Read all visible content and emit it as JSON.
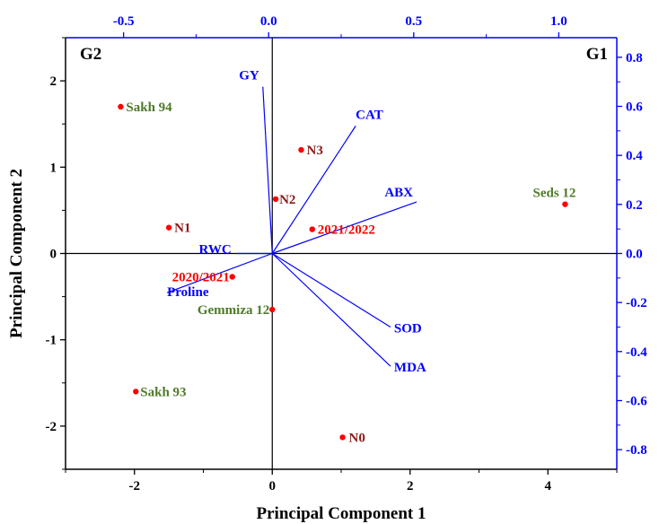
{
  "chart_data": {
    "type": "scatter",
    "subtype": "biplot",
    "xlabel": "Principal Component 1",
    "ylabel": "Principal Component 2",
    "xlim": [
      -3,
      5
    ],
    "ylim": [
      -2.5,
      2.5
    ],
    "x_ticks": [
      -2,
      0,
      2,
      4
    ],
    "y_ticks": [
      -2,
      -1,
      0,
      1,
      2
    ],
    "top_axis": {
      "lim": [
        -0.7,
        1.2
      ],
      "ticks": [
        -0.5,
        0.0,
        0.5,
        1.0
      ],
      "tick_labels": [
        "-0.5",
        "0.0",
        "0.5",
        "1.0"
      ],
      "color": "#0000ff"
    },
    "right_axis": {
      "lim": [
        -0.88,
        0.88
      ],
      "ticks": [
        -0.8,
        -0.6,
        -0.4,
        -0.2,
        0.0,
        0.2,
        0.4,
        0.6,
        0.8
      ],
      "tick_labels": [
        "-0.8",
        "-0.6",
        "-0.4",
        "-0.2",
        "0.0",
        "0.2",
        "0.4",
        "0.6",
        "0.8"
      ],
      "color": "#0000ff"
    },
    "quadrant_labels": [
      "G2",
      "G1"
    ],
    "point_color": "#ff0000",
    "vector_color": "#0000ff",
    "scores": [
      {
        "label": "Sakh 94",
        "x": -2.2,
        "y": 1.7,
        "color": "#4f7a28"
      },
      {
        "label": "N3",
        "x": 0.42,
        "y": 1.2,
        "color": "#8b1a1a"
      },
      {
        "label": "N2",
        "x": 0.05,
        "y": 0.63,
        "color": "#8b1a1a"
      },
      {
        "label": "Seds 12",
        "x": 4.25,
        "y": 0.57,
        "color": "#4f7a28"
      },
      {
        "label": "N1",
        "x": -1.5,
        "y": 0.3,
        "color": "#8b1a1a"
      },
      {
        "label": "2021/2022",
        "x": 0.58,
        "y": 0.28,
        "color": "#ff0000"
      },
      {
        "label": "2020/2021",
        "x": -0.58,
        "y": -0.27,
        "color": "#ff0000"
      },
      {
        "label": "Gemmiza 12",
        "x": 0.0,
        "y": -0.65,
        "color": "#4f7a28"
      },
      {
        "label": "Sakh 93",
        "x": -1.98,
        "y": -1.6,
        "color": "#4f7a28"
      },
      {
        "label": "N0",
        "x": 1.02,
        "y": -2.13,
        "color": "#8b1a1a"
      }
    ],
    "loadings": [
      {
        "label": "GY",
        "x": -0.02,
        "y": 0.68
      },
      {
        "label": "CAT",
        "x": 0.3,
        "y": 0.52
      },
      {
        "label": "ABX",
        "x": 0.51,
        "y": 0.21
      },
      {
        "label": "SOD",
        "x": 0.42,
        "y": -0.3
      },
      {
        "label": "MDA",
        "x": 0.42,
        "y": -0.46
      },
      {
        "label": "RWC",
        "x": -0.11,
        "y": 0.0
      },
      {
        "label": "Proline",
        "x": -0.35,
        "y": -0.16
      }
    ]
  }
}
